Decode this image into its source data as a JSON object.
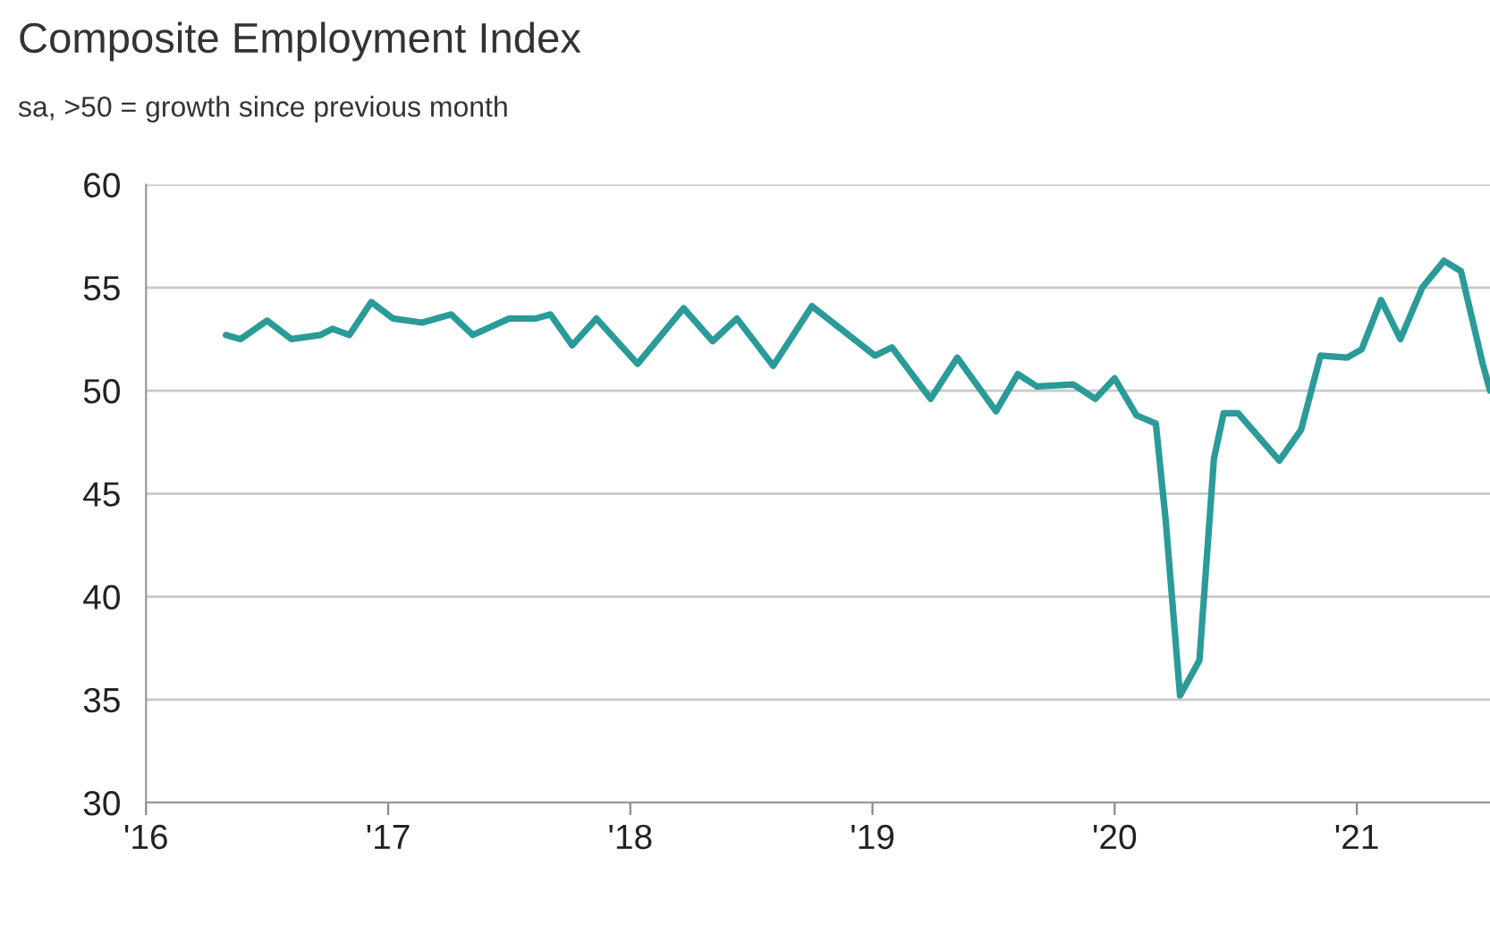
{
  "chart_data": {
    "type": "line",
    "title": "Composite Employment Index",
    "subtitle": "sa, >50 = growth since previous month",
    "series": [
      {
        "color": "#2a9b98",
        "x": [
          2016.33,
          2016.39,
          2016.5,
          2016.6,
          2016.72,
          2016.77,
          2016.84,
          2016.93,
          2017.02,
          2017.14,
          2017.26,
          2017.35,
          2017.5,
          2017.61,
          2017.67,
          2017.76,
          2017.86,
          2018.03,
          2018.22,
          2018.34,
          2018.44,
          2018.59,
          2018.75,
          2019.01,
          2019.08,
          2019.24,
          2019.35,
          2019.51,
          2019.6,
          2019.68,
          2019.83,
          2019.92,
          2020.0,
          2020.09,
          2020.17,
          2020.21,
          2020.27,
          2020.35,
          2020.41,
          2020.45,
          2020.51,
          2020.68,
          2020.77,
          2020.85,
          2020.96,
          2021.02,
          2021.1,
          2021.18,
          2021.27,
          2021.36,
          2021.43,
          2021.52,
          2021.55
        ],
        "values": [
          52.7,
          52.5,
          53.4,
          52.5,
          52.7,
          53.0,
          52.7,
          54.3,
          53.5,
          53.3,
          53.7,
          52.7,
          53.5,
          53.5,
          53.7,
          52.2,
          53.5,
          51.3,
          54.0,
          52.4,
          53.5,
          51.2,
          54.1,
          51.7,
          52.1,
          49.6,
          51.6,
          49.0,
          50.8,
          50.2,
          50.3,
          49.6,
          50.6,
          48.8,
          48.4,
          43.8,
          35.2,
          36.9,
          46.7,
          48.9,
          48.9,
          46.6,
          48.1,
          51.7,
          51.6,
          52.0,
          54.4,
          52.5,
          55.0,
          56.3,
          55.8,
          51.3,
          50.0
        ]
      }
    ],
    "xlim": [
      2016,
      2021.55
    ],
    "xticks": [
      {
        "value": 2016,
        "label": "'16"
      },
      {
        "value": 2017,
        "label": "'17"
      },
      {
        "value": 2018,
        "label": "'18"
      },
      {
        "value": 2019,
        "label": "'19"
      },
      {
        "value": 2020,
        "label": "'20"
      },
      {
        "value": 2021,
        "label": "'21"
      }
    ],
    "ylim": [
      30,
      60
    ],
    "yticks": [
      30,
      35,
      40,
      45,
      50,
      55,
      60
    ],
    "grid": "y",
    "legend": false,
    "line_style": "solid"
  }
}
